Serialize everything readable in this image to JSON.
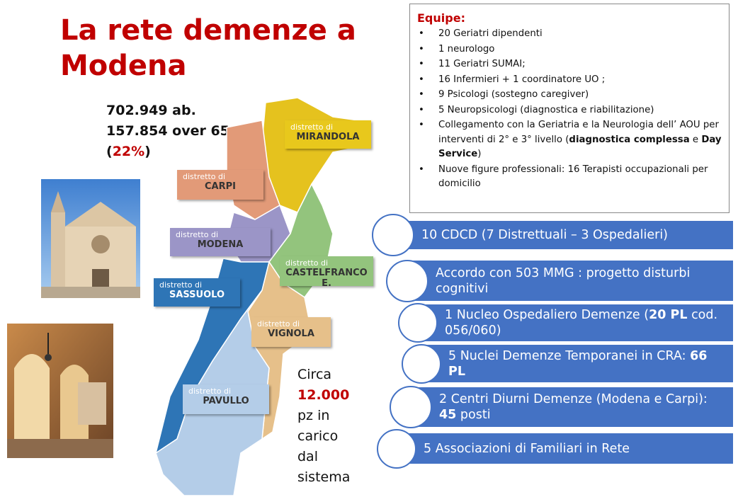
{
  "title": "La rete demenze a Modena",
  "population": [
    [
      {
        "text": "702.949 ab."
      }
    ],
    [
      {
        "text": "157.854 over 65"
      }
    ],
    [
      {
        "text": "("
      },
      {
        "text": "22%",
        "red": true
      },
      {
        "text": ")"
      }
    ]
  ],
  "districts": [
    {
      "prefix": "distretto di",
      "name": "MIRANDOLA"
    },
    {
      "prefix": "distretto di",
      "name": "CARPI"
    },
    {
      "prefix": "distretto di",
      "name": "MODENA"
    },
    {
      "prefix": "distretto di",
      "name": "CASTELFRANCO E."
    },
    {
      "prefix": "distretto di",
      "name": "SASSUOLO"
    },
    {
      "prefix": "distretto di",
      "name": "VIGNOLA"
    },
    {
      "prefix": "distretto di",
      "name": "PAVULLO"
    }
  ],
  "patients": [
    [
      {
        "text": "Circa"
      }
    ],
    [
      {
        "text": "12.000",
        "red": true,
        "bold": true
      }
    ],
    [
      {
        "text": "pz in"
      }
    ],
    [
      {
        "text": "carico"
      }
    ],
    [
      {
        "text": "dal"
      }
    ],
    [
      {
        "text": "sistema"
      }
    ]
  ],
  "equipe": {
    "title": "Equipe:",
    "items": [
      [
        {
          "text": "20 Geriatri dipendenti"
        }
      ],
      [
        {
          "text": "1 neurologo"
        }
      ],
      [
        {
          "text": "11 Geriatri SUMAI;"
        }
      ],
      [
        {
          "text": "16 Infermieri + 1 coordinatore UO ;"
        }
      ],
      [
        {
          "text": "9 Psicologi (sostegno caregiver)"
        }
      ],
      [
        {
          "text": "5 Neuropsicologi (diagnostica e riabilitazione)"
        }
      ],
      [
        {
          "text": "Collegamento con la Geriatria e la Neurologia dell’ AOU per interventi di 2° e 3° livello ("
        },
        {
          "text": "diagnostica complessa",
          "bold": true
        },
        {
          "text": " e "
        },
        {
          "text": "Day Service",
          "bold": true
        },
        {
          "text": ")"
        }
      ],
      [
        {
          "text": "Nuove figure professionali:  16 Terapisti occupazionali per domicilio"
        }
      ]
    ]
  },
  "services": [
    [
      {
        "text": "10 CDCD (7 Distrettuali – 3 Ospedalieri)"
      }
    ],
    [
      {
        "text": "Accordo con 503 MMG : progetto disturbi cognitivi"
      }
    ],
    [
      {
        "text": "1 Nucleo Ospedaliero Demenze ("
      },
      {
        "text": "20 PL",
        "bold": true
      },
      {
        "text": " cod. 056/060)"
      }
    ],
    [
      {
        "text": "5 Nuclei Demenze Temporanei in CRA: "
      },
      {
        "text": "66 PL",
        "bold": true
      }
    ],
    [
      {
        "text": "2 Centri Diurni Demenze (Modena e Carpi): "
      },
      {
        "text": "45",
        "bold": true
      },
      {
        "text": " posti"
      }
    ],
    [
      {
        "text": "5 Associazioni di Familiari in Rete"
      }
    ]
  ]
}
